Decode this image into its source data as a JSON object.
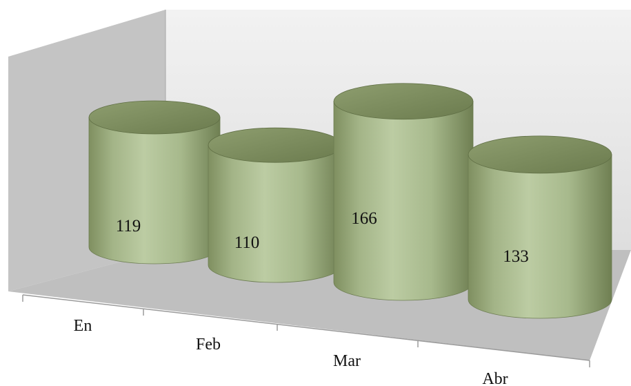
{
  "chart_data": {
    "type": "bar",
    "style": "3d-cylinder",
    "categories": [
      "En",
      "Feb",
      "Mar",
      "Abr"
    ],
    "values": [
      119,
      110,
      166,
      133
    ],
    "data_labels": [
      "119",
      "110",
      "166",
      "133"
    ],
    "grid": false,
    "legend": "none",
    "colors": {
      "bar_fill": "#a9bd8f",
      "bar_edge": "#6d7d52",
      "back_wall": "#e8e8e8",
      "side_wall": "#bdbdbd",
      "floor": "#bcbcbc"
    }
  }
}
